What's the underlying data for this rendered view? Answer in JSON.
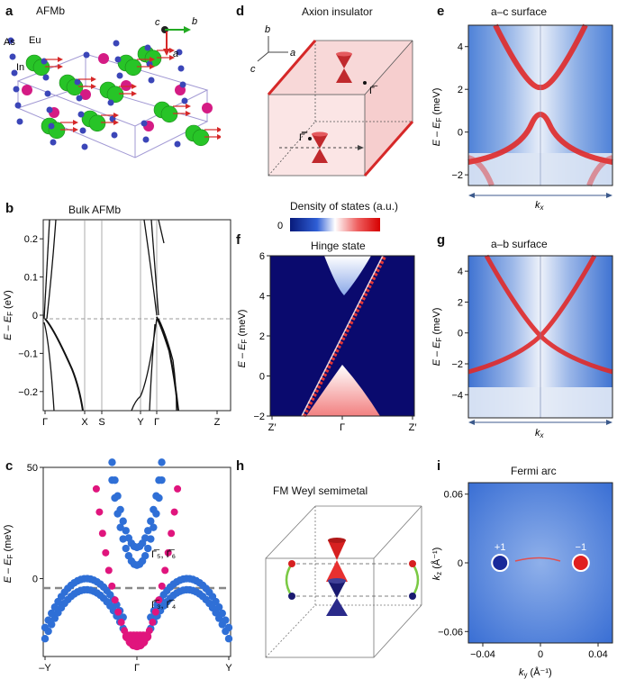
{
  "panels": {
    "a": {
      "letter": "a",
      "title": "AFMb",
      "atoms": [
        "As",
        "In",
        "Eu"
      ],
      "axes": [
        "c",
        "b",
        "a"
      ]
    },
    "b": {
      "letter": "b",
      "title": "Bulk AFMb",
      "ylabel": "E – E",
      "ylabel_sub": "F",
      "ylabel_unit": " (eV)",
      "yticks": [
        "0.2",
        "0.1",
        "0",
        "−0.1",
        "−0.2"
      ],
      "xticks": [
        "Γ",
        "X",
        "S",
        "Y",
        "Γ",
        "Z"
      ]
    },
    "c": {
      "letter": "c",
      "ylabel": "E – E",
      "ylabel_sub": "F",
      "ylabel_unit": " (meV)",
      "yticks": [
        "50",
        "0"
      ],
      "xticks": [
        "–Y",
        "Γ",
        "Y"
      ],
      "ann_upper": "Γ̅₅, Γ̅₆",
      "ann_lower": "Γ̅₃, Γ̅₄"
    },
    "d": {
      "letter": "d",
      "title": "Axion insulator",
      "axes": [
        "b",
        "a",
        "c"
      ],
      "gamma": "Γ̅",
      "gamma2": "Γ̿"
    },
    "e": {
      "letter": "e",
      "title": "a–c surface",
      "ylabel": "E – E",
      "ylabel_sub": "F",
      "ylabel_unit": " (meV)",
      "yticks": [
        "4",
        "2",
        "0",
        "−2"
      ],
      "xlabel": "k",
      "xlabel_sub": "x"
    },
    "f": {
      "letter": "f",
      "title": "Hinge state",
      "ylabel": "E – E",
      "ylabel_sub": "F",
      "ylabel_unit": " (meV)",
      "yticks": [
        "6",
        "4",
        "2",
        "0",
        "−2"
      ],
      "xticks": [
        "Z′",
        "Γ",
        "Z′"
      ],
      "colorbar_title": "Density of states (a.u.)",
      "colorbar_min": "0"
    },
    "g": {
      "letter": "g",
      "title": "a–b surface",
      "ylabel": "E – E",
      "ylabel_sub": "F",
      "ylabel_unit": " (meV)",
      "yticks": [
        "4",
        "2",
        "0",
        "−2",
        "−4"
      ],
      "xlabel": "k",
      "xlabel_sub": "x"
    },
    "h": {
      "letter": "h",
      "title": "FM Weyl semimetal"
    },
    "i": {
      "letter": "i",
      "title": "Fermi arc",
      "ylabel": "k",
      "ylabel_sub": "z",
      "ylabel_unit": " (Å⁻¹)",
      "xlabel": "k",
      "xlabel_sub": "y",
      "xlabel_unit": " (Å⁻¹)",
      "yticks": [
        "0.06",
        "0",
        "−0.06"
      ],
      "xticks": [
        "−0.04",
        "0",
        "0.04"
      ],
      "plus": "+1",
      "minus": "−1"
    }
  },
  "colors": {
    "magenta": "#e0157d",
    "blue": "#2f6fd6",
    "red": "#e03030",
    "green": "#3cc83c",
    "navy": "#0a0a6e"
  },
  "chart_data": [
    {
      "type": "line",
      "panel": "b",
      "title": "Bulk AFMb",
      "xlabel": "",
      "ylabel": "E – EF (eV)",
      "ylim": [
        -0.25,
        0.25
      ],
      "categories": [
        "Γ",
        "X",
        "S",
        "Y",
        "Γ",
        "Z"
      ],
      "grid": false
    },
    {
      "type": "scatter",
      "panel": "c",
      "xlabel": "",
      "ylabel": "E – EF (meV)",
      "ylim": [
        -35,
        50
      ],
      "categories": [
        "–Y",
        "Γ",
        "Y"
      ],
      "series": [
        {
          "color": "#2f6fd6",
          "x": [
            -1.0,
            -0.75,
            -0.5,
            -0.35,
            -0.2,
            0.2,
            0.35,
            0.5,
            0.75,
            1.0
          ],
          "y": [
            -20,
            -8,
            0,
            -3,
            -12,
            -12,
            -3,
            0,
            -8,
            -20
          ]
        },
        {
          "color": "#e0157d",
          "x": [
            -0.45,
            -0.35,
            -0.25,
            -0.15,
            -0.05,
            0,
            0.05,
            0.15,
            0.25,
            0.35,
            0.45
          ],
          "y": [
            45,
            30,
            15,
            -5,
            -25,
            -30,
            -25,
            -5,
            15,
            30,
            45
          ]
        }
      ]
    },
    {
      "type": "heatmap",
      "panel": "e",
      "title": "a–c surface",
      "ylabel": "E – EF (meV)",
      "xlabel": "kx",
      "ylim": [
        -2.5,
        5
      ]
    },
    {
      "type": "heatmap",
      "panel": "f",
      "title": "Hinge state",
      "ylabel": "E – EF (meV)",
      "ylim": [
        -2,
        6
      ],
      "categories": [
        "Z′",
        "Γ",
        "Z′"
      ]
    },
    {
      "type": "heatmap",
      "panel": "g",
      "title": "a–b surface",
      "ylabel": "E – EF (meV)",
      "xlabel": "kx",
      "ylim": [
        -5.5,
        5
      ]
    },
    {
      "type": "heatmap",
      "panel": "i",
      "title": "Fermi arc",
      "xlabel": "ky (Å⁻¹)",
      "ylabel": "kz (Å⁻¹)",
      "xlim": [
        -0.05,
        0.05
      ],
      "ylim": [
        -0.07,
        0.07
      ],
      "points": [
        {
          "label": "+1",
          "x": -0.028,
          "y": 0
        },
        {
          "label": "−1",
          "x": 0.028,
          "y": 0
        }
      ]
    }
  ]
}
